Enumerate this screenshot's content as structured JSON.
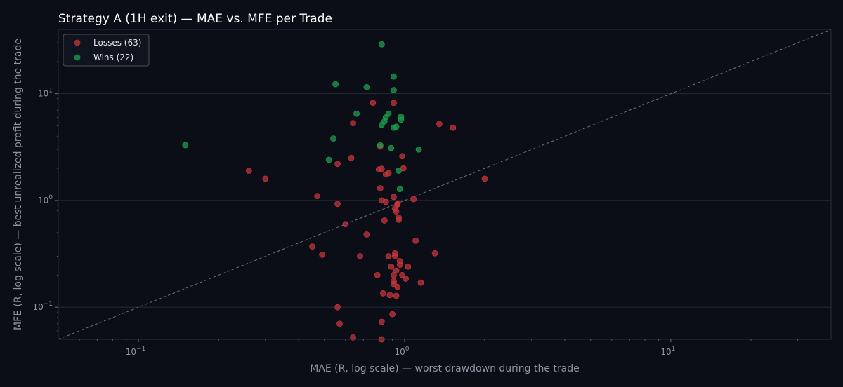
{
  "chart_data": {
    "type": "scatter",
    "title": "Strategy A (1H exit) — MAE vs. MFE per Trade",
    "xlabel": "MAE (R, log scale) — worst drawdown during the trade",
    "ylabel": "MFE (R, log scale) — best unrealized profit during the trade",
    "x_scale": "log",
    "y_scale": "log",
    "xlim": [
      0.05,
      40
    ],
    "ylim": [
      0.05,
      40
    ],
    "x_ticks": [
      {
        "value": 0.1,
        "base": "10",
        "exp": "−1"
      },
      {
        "value": 1,
        "base": "10",
        "exp": "0"
      },
      {
        "value": 10,
        "base": "10",
        "exp": "1"
      }
    ],
    "y_ticks": [
      {
        "value": 0.1,
        "base": "10",
        "exp": "−1"
      },
      {
        "value": 1,
        "base": "10",
        "exp": "0"
      },
      {
        "value": 10,
        "base": "10",
        "exp": "1"
      }
    ],
    "grid": true,
    "reference_line": "y = x",
    "legend_position": "top-left",
    "colors": {
      "background": "#0b0e17",
      "grid": "#262b37",
      "loss": "#c9363d",
      "win": "#1ea14f",
      "diagonal": "#6b7080"
    },
    "series": [
      {
        "name": "Losses (63)",
        "color": "#c9363d",
        "points": [
          [
            0.26,
            1.9
          ],
          [
            0.3,
            1.6
          ],
          [
            0.45,
            0.37
          ],
          [
            0.47,
            1.1
          ],
          [
            0.49,
            0.31
          ],
          [
            0.56,
            2.2
          ],
          [
            0.56,
            0.93
          ],
          [
            0.56,
            0.1
          ],
          [
            0.57,
            0.07
          ],
          [
            0.6,
            0.6
          ],
          [
            0.63,
            2.5
          ],
          [
            0.64,
            5.3
          ],
          [
            0.64,
            0.052
          ],
          [
            0.68,
            0.3
          ],
          [
            0.72,
            0.48
          ],
          [
            0.76,
            8.2
          ],
          [
            0.79,
            0.2
          ],
          [
            0.8,
            1.95
          ],
          [
            0.81,
            3.2
          ],
          [
            0.81,
            1.3
          ],
          [
            0.82,
            1.98
          ],
          [
            0.82,
            1.0
          ],
          [
            0.82,
            0.073
          ],
          [
            0.82,
            0.05
          ],
          [
            0.83,
            0.135
          ],
          [
            0.84,
            0.65
          ],
          [
            0.85,
            1.75
          ],
          [
            0.85,
            0.97
          ],
          [
            0.87,
            1.8
          ],
          [
            0.87,
            0.3
          ],
          [
            0.88,
            0.13
          ],
          [
            0.89,
            0.24
          ],
          [
            0.9,
            0.086
          ],
          [
            0.91,
            8.2
          ],
          [
            0.91,
            1.08
          ],
          [
            0.91,
            0.2
          ],
          [
            0.91,
            0.175
          ],
          [
            0.91,
            0.165
          ],
          [
            0.92,
            0.84
          ],
          [
            0.92,
            0.32
          ],
          [
            0.92,
            0.3
          ],
          [
            0.93,
            0.79
          ],
          [
            0.93,
            0.22
          ],
          [
            0.93,
            0.128
          ],
          [
            0.94,
            0.93
          ],
          [
            0.94,
            0.155
          ],
          [
            0.95,
            0.66
          ],
          [
            0.95,
            0.69
          ],
          [
            0.96,
            0.27
          ],
          [
            0.96,
            0.25
          ],
          [
            0.98,
            0.2
          ],
          [
            0.98,
            2.6
          ],
          [
            0.99,
            2.0
          ],
          [
            1.01,
            0.185
          ],
          [
            1.03,
            0.24
          ],
          [
            1.08,
            1.03
          ],
          [
            1.1,
            0.42
          ],
          [
            1.15,
            0.17
          ],
          [
            1.3,
            0.32
          ],
          [
            1.35,
            5.2
          ],
          [
            1.52,
            4.8
          ],
          [
            2.0,
            1.6
          ],
          [
            0.94,
            0.92
          ]
        ]
      },
      {
        "name": "Wins (22)",
        "color": "#1ea14f",
        "points": [
          [
            0.15,
            3.3
          ],
          [
            0.52,
            2.4
          ],
          [
            0.54,
            3.8
          ],
          [
            0.55,
            12.3
          ],
          [
            0.66,
            6.5
          ],
          [
            0.72,
            11.5
          ],
          [
            0.81,
            3.3
          ],
          [
            0.82,
            5.1
          ],
          [
            0.82,
            29.0
          ],
          [
            0.84,
            5.5
          ],
          [
            0.85,
            6.0
          ],
          [
            0.87,
            6.5
          ],
          [
            0.89,
            3.1
          ],
          [
            0.91,
            4.8
          ],
          [
            0.91,
            14.5
          ],
          [
            0.91,
            10.8
          ],
          [
            0.93,
            4.9
          ],
          [
            0.95,
            1.9
          ],
          [
            0.96,
            1.28
          ],
          [
            0.97,
            5.7
          ],
          [
            0.97,
            6.1
          ],
          [
            1.13,
            3.0
          ]
        ]
      }
    ]
  }
}
